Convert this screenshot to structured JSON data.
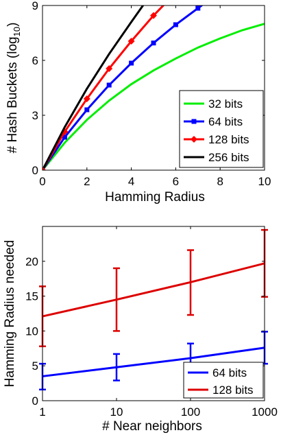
{
  "chart_data": [
    {
      "type": "line",
      "xlabel": "Hamming Radius",
      "ylabel": "# Hash Buckets (log",
      "ylabel_sub": "10",
      "ylabel_tail": ")",
      "xlim": [
        0,
        10
      ],
      "ylim": [
        0,
        9
      ],
      "xticks": [
        "0",
        "2",
        "4",
        "6",
        "8",
        "10"
      ],
      "yticks": [
        "0",
        "3",
        "6",
        "9"
      ],
      "legend_position": "bottom-right",
      "series": [
        {
          "name": "32 bits",
          "color": "#00ee00",
          "marker": "none",
          "x": [
            0,
            1,
            2,
            3,
            4,
            5,
            6,
            7,
            8,
            9,
            10
          ],
          "y": [
            0,
            1.5,
            2.75,
            3.8,
            4.7,
            5.45,
            6.1,
            6.7,
            7.2,
            7.65,
            8.0
          ]
        },
        {
          "name": "64 bits",
          "color": "#0000ff",
          "marker": "square",
          "x": [
            0,
            1,
            2,
            3,
            4,
            5,
            6,
            7,
            7.5
          ],
          "y": [
            0,
            1.8,
            3.3,
            4.65,
            5.85,
            6.95,
            7.95,
            8.85,
            9.3
          ]
        },
        {
          "name": "128 bits",
          "color": "#ff0000",
          "marker": "diamond",
          "x": [
            0,
            1,
            2,
            3,
            4,
            5,
            5.6
          ],
          "y": [
            0,
            2.1,
            3.9,
            5.55,
            7.05,
            8.45,
            9.2
          ]
        },
        {
          "name": "256 bits",
          "color": "#000000",
          "marker": "none",
          "x": [
            0,
            1,
            2,
            3,
            4,
            4.7
          ],
          "y": [
            0,
            2.35,
            4.45,
            6.35,
            8.1,
            9.3
          ]
        }
      ]
    },
    {
      "type": "line",
      "xlabel": "# Near neighbors",
      "ylabel": "Hamming Radius needed",
      "xscale": "log",
      "xlim": [
        1,
        1000
      ],
      "ylim": [
        0,
        25
      ],
      "xticks": [
        "1",
        "10",
        "100",
        "1000"
      ],
      "yticks": [
        "0",
        "5",
        "10",
        "15",
        "20"
      ],
      "legend_position": "bottom-right",
      "series": [
        {
          "name": "64 bits",
          "color": "#0000ff",
          "x": [
            1,
            10,
            100,
            1000
          ],
          "y": [
            3.5,
            4.8,
            6.1,
            7.6
          ],
          "err_low": [
            1.6,
            2.9,
            4.0,
            5.3
          ],
          "err_high": [
            5.3,
            6.7,
            8.2,
            9.9
          ]
        },
        {
          "name": "128 bits",
          "color": "#dd0000",
          "x": [
            1,
            10,
            100,
            1000
          ],
          "y": [
            12.1,
            14.5,
            17.0,
            19.7
          ],
          "err_low": [
            7.8,
            10.0,
            12.3,
            14.9
          ],
          "err_high": [
            16.4,
            19.0,
            21.6,
            24.5
          ]
        }
      ]
    }
  ]
}
